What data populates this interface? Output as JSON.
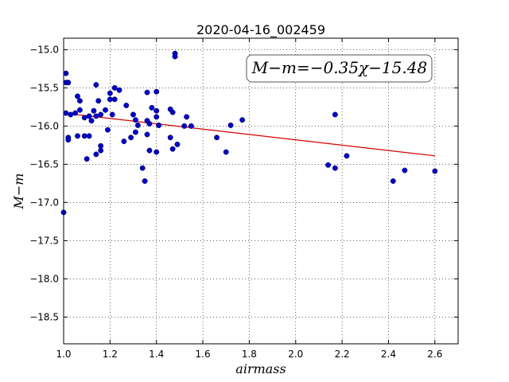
{
  "chart_data": {
    "type": "scatter",
    "title": "2020-04-16_002459",
    "xlabel": "airmass",
    "ylabel": "M−m",
    "xlim": [
      1.0,
      2.7
    ],
    "ylim": [
      -18.85,
      -14.85
    ],
    "x_ticks": [
      1.0,
      1.2,
      1.4,
      1.6,
      1.8,
      2.0,
      2.2,
      2.4,
      2.6
    ],
    "x_tick_labels": [
      "1.0",
      "1.2",
      "1.4",
      "1.6",
      "1.8",
      "2.0",
      "2.2",
      "2.4",
      "2.6"
    ],
    "y_ticks": [
      -15.0,
      -15.5,
      -16.0,
      -16.5,
      -17.0,
      -17.5,
      -18.0,
      -18.5
    ],
    "y_tick_labels": [
      "−15.0",
      "−15.5",
      "−16.0",
      "−16.5",
      "−17.0",
      "−17.5",
      "−18.0",
      "−18.5"
    ],
    "grid": true,
    "annotation": "M−m=−0.35χ−15.48",
    "fit_line": {
      "slope": -0.35,
      "intercept": -15.48,
      "x_range": [
        1.0,
        2.6
      ],
      "color": "#d40000"
    },
    "point_color": "#0000cc",
    "series": [
      {
        "x": [
          1.0,
          1.01,
          1.01,
          1.01,
          1.02,
          1.02,
          1.02,
          1.03,
          1.05,
          1.06,
          1.06,
          1.07,
          1.07,
          1.09,
          1.09,
          1.1,
          1.11,
          1.11,
          1.12,
          1.13,
          1.14,
          1.14,
          1.14,
          1.15,
          1.16,
          1.16,
          1.16,
          1.18,
          1.19,
          1.2,
          1.2,
          1.21,
          1.22,
          1.22,
          1.24,
          1.26,
          1.27,
          1.29,
          1.3,
          1.31,
          1.31,
          1.32,
          1.34,
          1.35,
          1.36,
          1.36,
          1.36,
          1.37,
          1.37,
          1.38,
          1.4,
          1.4,
          1.4,
          1.4,
          1.41,
          1.41,
          1.46,
          1.46,
          1.47,
          1.47,
          1.48,
          1.48,
          1.49,
          1.52,
          1.53,
          1.55,
          1.66,
          1.7,
          1.72,
          1.77,
          2.14,
          2.17,
          2.17,
          2.22,
          2.42,
          2.47,
          2.6
        ],
        "y": [
          -17.13,
          -15.31,
          -15.43,
          -15.83,
          -15.43,
          -16.15,
          -16.18,
          -15.85,
          -15.83,
          -15.61,
          -16.13,
          -15.67,
          -15.79,
          -15.89,
          -16.13,
          -16.43,
          -16.13,
          -15.87,
          -15.93,
          -15.8,
          -15.46,
          -15.87,
          -16.37,
          -15.67,
          -15.85,
          -16.26,
          -16.32,
          -15.79,
          -16.05,
          -15.57,
          -15.65,
          -15.85,
          -15.5,
          -15.65,
          -15.53,
          -16.2,
          -15.73,
          -16.15,
          -15.85,
          -15.92,
          -16.08,
          -15.99,
          -16.55,
          -16.72,
          -16.11,
          -15.56,
          -15.93,
          -16.32,
          -15.97,
          -15.76,
          -16.34,
          -15.55,
          -15.8,
          -15.88,
          -15.99,
          -15.99,
          -15.78,
          -16.15,
          -16.3,
          -15.82,
          -15.05,
          -15.09,
          -16.24,
          -16.0,
          -15.88,
          -16.0,
          -16.15,
          -16.34,
          -15.99,
          -15.92,
          -16.51,
          -15.85,
          -16.55,
          -16.39,
          -16.72,
          -16.58,
          -16.59
        ]
      }
    ]
  }
}
